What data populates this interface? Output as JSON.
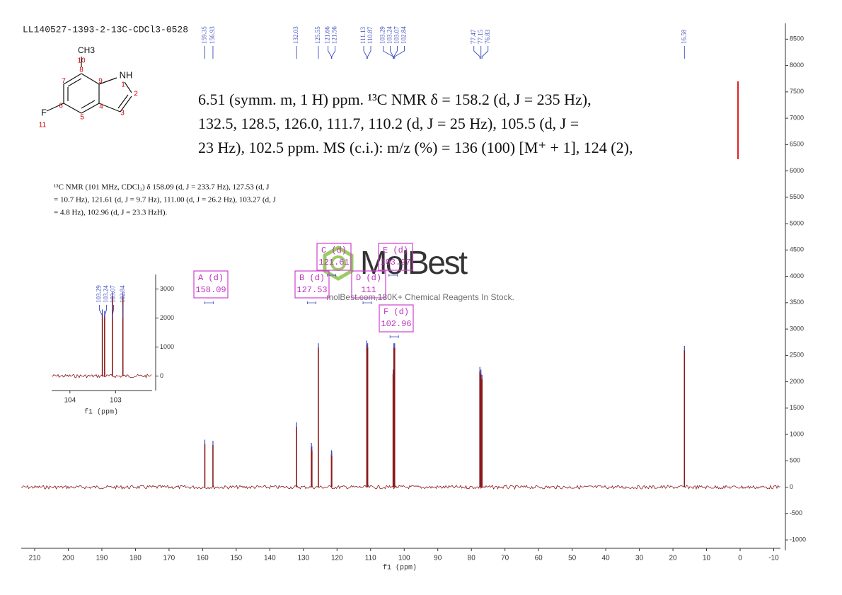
{
  "title": "LL140527-1393-2-13C-CDCl3-0528",
  "structure": {
    "atoms": [
      "CH3",
      "10",
      "8",
      "7",
      "9",
      "NH",
      "1",
      "2",
      "6",
      "4",
      "3",
      "5",
      "F",
      "11"
    ]
  },
  "literature": {
    "lines": [
      "6.51 (symm. m, 1 H) ppm. ¹³C NMR δ = 158.2 (d, J = 235 Hz),",
      "132.5, 128.5, 126.0, 111.7, 110.2 (d, J = 25 Hz), 105.5 (d, J =",
      "23 Hz), 102.5 ppm. MS (c.i.): m/z (%) = 136 (100) [M⁺ + 1], 124 (2),"
    ]
  },
  "reference": {
    "lines": [
      "¹³C NMR (101 MHz, CDCl₃) δ 158.09 (d, J = 233.7 Hz), 127.53 (d, J",
      "= 10.7 Hz), 121.61 (d, J = 9.7 Hz), 111.00 (d, J = 26.2 Hz), 103.27 (d, J",
      "= 4.8 Hz), 102.96 (d, J = 23.3 HzH)."
    ]
  },
  "watermark": {
    "brand": "MolBest",
    "tagline": "molBest.com,180K+ Chemical Reagents In Stock."
  },
  "chart_data": [
    {
      "type": "spectrum",
      "x_label": "f1 (ppm)",
      "color": "#8b1a1a",
      "xlim": [
        214,
        -12
      ],
      "xticks": [
        210,
        200,
        190,
        180,
        170,
        160,
        150,
        140,
        130,
        120,
        110,
        100,
        90,
        80,
        70,
        60,
        50,
        40,
        30,
        20,
        10,
        0,
        -10
      ],
      "ylim": [
        -1200,
        8800
      ],
      "yticks": [
        -1000,
        -500,
        0,
        500,
        1000,
        1500,
        2000,
        2500,
        3000,
        3500,
        4000,
        4500,
        5000,
        5500,
        6000,
        6500,
        7000,
        7500,
        8000,
        8500
      ],
      "peaks": {
        "x": [
          159.35,
          156.93,
          132.03,
          127.62,
          127.47,
          125.55,
          121.66,
          121.56,
          111.13,
          110.87,
          103.29,
          103.24,
          103.07,
          102.84,
          77.47,
          77.15,
          76.83,
          16.58
        ],
        "values": [
          820,
          800,
          1150,
          760,
          700,
          2650,
          620,
          600,
          2700,
          2650,
          2150,
          2150,
          2650,
          2650,
          2200,
          2150,
          2050,
          2600
        ]
      },
      "peak_labels": [
        159.35,
        156.93,
        132.03,
        125.55,
        121.66,
        121.56,
        111.13,
        110.87,
        103.29,
        103.24,
        103.07,
        102.84,
        77.47,
        77.15,
        76.83,
        16.58
      ],
      "multiplets": [
        {
          "label": "A (d)",
          "value": 158.09
        },
        {
          "label": "B (d)",
          "value": 127.53
        },
        {
          "label": "C (d)",
          "value": 121.61
        },
        {
          "label": "D (d)",
          "value": 111.0
        },
        {
          "label": "E (d)",
          "value": 103.27
        },
        {
          "label": "F (d)",
          "value": 102.96
        }
      ]
    },
    {
      "type": "spectrum",
      "x_label": "f1 (ppm)",
      "color": "#8b1a1a",
      "xlim": [
        104.4,
        102.2
      ],
      "xticks": [
        104,
        103
      ],
      "ylim": [
        -500,
        3500
      ],
      "yticks": [
        0,
        1000,
        2000,
        3000
      ],
      "peaks": {
        "x": [
          103.29,
          103.24,
          103.07,
          102.84
        ],
        "values": [
          2150,
          2100,
          2750,
          2750
        ]
      },
      "peak_labels": [
        103.29,
        103.24,
        103.07,
        102.84
      ]
    }
  ]
}
